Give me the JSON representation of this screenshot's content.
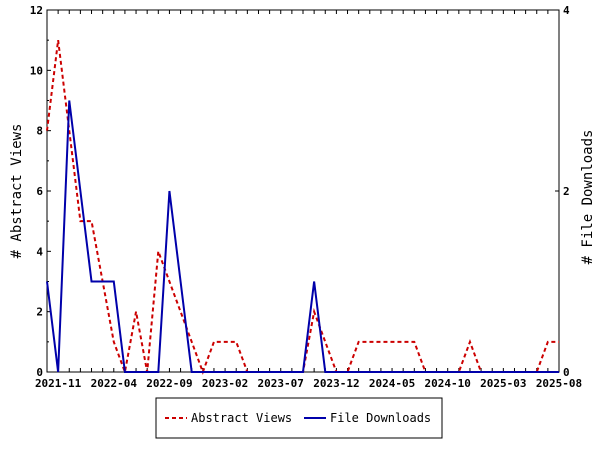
{
  "chart_data": {
    "type": "line",
    "x": [
      "2021-10",
      "2021-11",
      "2021-12",
      "2022-01",
      "2022-02",
      "2022-03",
      "2022-04",
      "2022-05",
      "2022-06",
      "2022-07",
      "2022-08",
      "2022-09",
      "2022-10",
      "2022-11",
      "2022-12",
      "2023-01",
      "2023-02",
      "2023-03",
      "2023-04",
      "2023-05",
      "2023-06",
      "2023-07",
      "2023-08",
      "2023-09",
      "2023-10",
      "2023-11",
      "2023-12",
      "2024-01",
      "2024-02",
      "2024-03",
      "2024-04",
      "2024-05",
      "2024-06",
      "2024-07",
      "2024-08",
      "2024-09",
      "2024-10",
      "2024-11",
      "2024-12",
      "2025-01",
      "2025-02",
      "2025-03",
      "2025-04",
      "2025-05",
      "2025-06",
      "2025-07",
      "2025-08"
    ],
    "x_ticks": [
      "2021-11",
      "2022-04",
      "2022-09",
      "2023-02",
      "2023-07",
      "2023-12",
      "2024-05",
      "2024-10",
      "2025-03",
      "2025-08"
    ],
    "series": [
      {
        "name": "Abstract Views",
        "axis": "left",
        "color": "#cc0000",
        "style": "dashed",
        "values": [
          8,
          11,
          8,
          5,
          5,
          3,
          1,
          0,
          2,
          0,
          4,
          3,
          2,
          1,
          0,
          1,
          1,
          1,
          0,
          0,
          0,
          0,
          0,
          0,
          2,
          1,
          0,
          0,
          1,
          1,
          1,
          1,
          1,
          1,
          0,
          0,
          0,
          0,
          1,
          0,
          0,
          0,
          0,
          0,
          0,
          1,
          1
        ]
      },
      {
        "name": "File Downloads",
        "axis": "right",
        "color": "#0000aa",
        "style": "solid",
        "values": [
          1,
          0,
          3,
          2,
          1,
          1,
          1,
          0,
          0,
          0,
          0,
          2,
          1,
          0,
          0,
          0,
          0,
          0,
          0,
          0,
          0,
          0,
          0,
          0,
          1,
          0,
          0,
          0,
          0,
          0,
          0,
          0,
          0,
          0,
          0,
          0,
          0,
          0,
          0,
          0,
          0,
          0,
          0,
          0,
          0,
          0,
          0
        ]
      }
    ],
    "left_axis": {
      "label": "# Abstract Views",
      "ylim": [
        0,
        12
      ],
      "ticks": [
        "0",
        "2",
        "4",
        "6",
        "8",
        "10",
        "12"
      ]
    },
    "right_axis": {
      "label": "# File Downloads",
      "ylim": [
        0,
        4
      ],
      "ticks": [
        "0",
        "2",
        "4"
      ]
    },
    "legend": {
      "placement": "bottom-center",
      "items": [
        "Abstract Views",
        "File Downloads"
      ]
    }
  }
}
